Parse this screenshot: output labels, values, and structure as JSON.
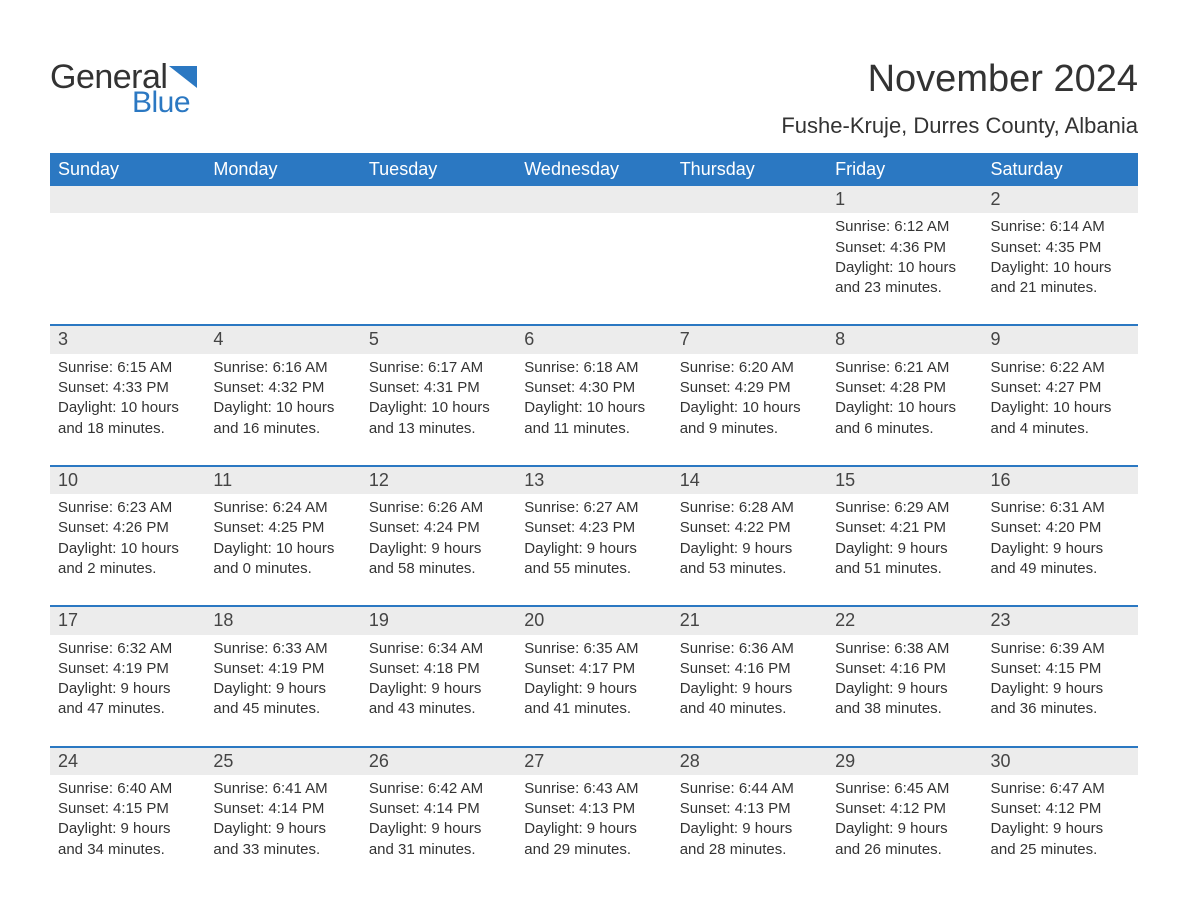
{
  "branding": {
    "logo_general": "General",
    "logo_blue": "Blue",
    "logo_flag_color": "#2b78c2"
  },
  "header": {
    "month_title": "November 2024",
    "location": "Fushe-Kruje, Durres County, Albania"
  },
  "calendar": {
    "day_header_bg": "#2b78c2",
    "day_header_color": "#ffffff",
    "week_separator_color": "#2b78c2",
    "daynum_bg": "#ececec",
    "text_color": "#333333",
    "days_of_week": [
      "Sunday",
      "Monday",
      "Tuesday",
      "Wednesday",
      "Thursday",
      "Friday",
      "Saturday"
    ],
    "weeks": [
      [
        null,
        null,
        null,
        null,
        null,
        {
          "n": "1",
          "sunrise": "Sunrise: 6:12 AM",
          "sunset": "Sunset: 4:36 PM",
          "daylight1": "Daylight: 10 hours",
          "daylight2": "and 23 minutes."
        },
        {
          "n": "2",
          "sunrise": "Sunrise: 6:14 AM",
          "sunset": "Sunset: 4:35 PM",
          "daylight1": "Daylight: 10 hours",
          "daylight2": "and 21 minutes."
        }
      ],
      [
        {
          "n": "3",
          "sunrise": "Sunrise: 6:15 AM",
          "sunset": "Sunset: 4:33 PM",
          "daylight1": "Daylight: 10 hours",
          "daylight2": "and 18 minutes."
        },
        {
          "n": "4",
          "sunrise": "Sunrise: 6:16 AM",
          "sunset": "Sunset: 4:32 PM",
          "daylight1": "Daylight: 10 hours",
          "daylight2": "and 16 minutes."
        },
        {
          "n": "5",
          "sunrise": "Sunrise: 6:17 AM",
          "sunset": "Sunset: 4:31 PM",
          "daylight1": "Daylight: 10 hours",
          "daylight2": "and 13 minutes."
        },
        {
          "n": "6",
          "sunrise": "Sunrise: 6:18 AM",
          "sunset": "Sunset: 4:30 PM",
          "daylight1": "Daylight: 10 hours",
          "daylight2": "and 11 minutes."
        },
        {
          "n": "7",
          "sunrise": "Sunrise: 6:20 AM",
          "sunset": "Sunset: 4:29 PM",
          "daylight1": "Daylight: 10 hours",
          "daylight2": "and 9 minutes."
        },
        {
          "n": "8",
          "sunrise": "Sunrise: 6:21 AM",
          "sunset": "Sunset: 4:28 PM",
          "daylight1": "Daylight: 10 hours",
          "daylight2": "and 6 minutes."
        },
        {
          "n": "9",
          "sunrise": "Sunrise: 6:22 AM",
          "sunset": "Sunset: 4:27 PM",
          "daylight1": "Daylight: 10 hours",
          "daylight2": "and 4 minutes."
        }
      ],
      [
        {
          "n": "10",
          "sunrise": "Sunrise: 6:23 AM",
          "sunset": "Sunset: 4:26 PM",
          "daylight1": "Daylight: 10 hours",
          "daylight2": "and 2 minutes."
        },
        {
          "n": "11",
          "sunrise": "Sunrise: 6:24 AM",
          "sunset": "Sunset: 4:25 PM",
          "daylight1": "Daylight: 10 hours",
          "daylight2": "and 0 minutes."
        },
        {
          "n": "12",
          "sunrise": "Sunrise: 6:26 AM",
          "sunset": "Sunset: 4:24 PM",
          "daylight1": "Daylight: 9 hours",
          "daylight2": "and 58 minutes."
        },
        {
          "n": "13",
          "sunrise": "Sunrise: 6:27 AM",
          "sunset": "Sunset: 4:23 PM",
          "daylight1": "Daylight: 9 hours",
          "daylight2": "and 55 minutes."
        },
        {
          "n": "14",
          "sunrise": "Sunrise: 6:28 AM",
          "sunset": "Sunset: 4:22 PM",
          "daylight1": "Daylight: 9 hours",
          "daylight2": "and 53 minutes."
        },
        {
          "n": "15",
          "sunrise": "Sunrise: 6:29 AM",
          "sunset": "Sunset: 4:21 PM",
          "daylight1": "Daylight: 9 hours",
          "daylight2": "and 51 minutes."
        },
        {
          "n": "16",
          "sunrise": "Sunrise: 6:31 AM",
          "sunset": "Sunset: 4:20 PM",
          "daylight1": "Daylight: 9 hours",
          "daylight2": "and 49 minutes."
        }
      ],
      [
        {
          "n": "17",
          "sunrise": "Sunrise: 6:32 AM",
          "sunset": "Sunset: 4:19 PM",
          "daylight1": "Daylight: 9 hours",
          "daylight2": "and 47 minutes."
        },
        {
          "n": "18",
          "sunrise": "Sunrise: 6:33 AM",
          "sunset": "Sunset: 4:19 PM",
          "daylight1": "Daylight: 9 hours",
          "daylight2": "and 45 minutes."
        },
        {
          "n": "19",
          "sunrise": "Sunrise: 6:34 AM",
          "sunset": "Sunset: 4:18 PM",
          "daylight1": "Daylight: 9 hours",
          "daylight2": "and 43 minutes."
        },
        {
          "n": "20",
          "sunrise": "Sunrise: 6:35 AM",
          "sunset": "Sunset: 4:17 PM",
          "daylight1": "Daylight: 9 hours",
          "daylight2": "and 41 minutes."
        },
        {
          "n": "21",
          "sunrise": "Sunrise: 6:36 AM",
          "sunset": "Sunset: 4:16 PM",
          "daylight1": "Daylight: 9 hours",
          "daylight2": "and 40 minutes."
        },
        {
          "n": "22",
          "sunrise": "Sunrise: 6:38 AM",
          "sunset": "Sunset: 4:16 PM",
          "daylight1": "Daylight: 9 hours",
          "daylight2": "and 38 minutes."
        },
        {
          "n": "23",
          "sunrise": "Sunrise: 6:39 AM",
          "sunset": "Sunset: 4:15 PM",
          "daylight1": "Daylight: 9 hours",
          "daylight2": "and 36 minutes."
        }
      ],
      [
        {
          "n": "24",
          "sunrise": "Sunrise: 6:40 AM",
          "sunset": "Sunset: 4:15 PM",
          "daylight1": "Daylight: 9 hours",
          "daylight2": "and 34 minutes."
        },
        {
          "n": "25",
          "sunrise": "Sunrise: 6:41 AM",
          "sunset": "Sunset: 4:14 PM",
          "daylight1": "Daylight: 9 hours",
          "daylight2": "and 33 minutes."
        },
        {
          "n": "26",
          "sunrise": "Sunrise: 6:42 AM",
          "sunset": "Sunset: 4:14 PM",
          "daylight1": "Daylight: 9 hours",
          "daylight2": "and 31 minutes."
        },
        {
          "n": "27",
          "sunrise": "Sunrise: 6:43 AM",
          "sunset": "Sunset: 4:13 PM",
          "daylight1": "Daylight: 9 hours",
          "daylight2": "and 29 minutes."
        },
        {
          "n": "28",
          "sunrise": "Sunrise: 6:44 AM",
          "sunset": "Sunset: 4:13 PM",
          "daylight1": "Daylight: 9 hours",
          "daylight2": "and 28 minutes."
        },
        {
          "n": "29",
          "sunrise": "Sunrise: 6:45 AM",
          "sunset": "Sunset: 4:12 PM",
          "daylight1": "Daylight: 9 hours",
          "daylight2": "and 26 minutes."
        },
        {
          "n": "30",
          "sunrise": "Sunrise: 6:47 AM",
          "sunset": "Sunset: 4:12 PM",
          "daylight1": "Daylight: 9 hours",
          "daylight2": "and 25 minutes."
        }
      ]
    ]
  }
}
